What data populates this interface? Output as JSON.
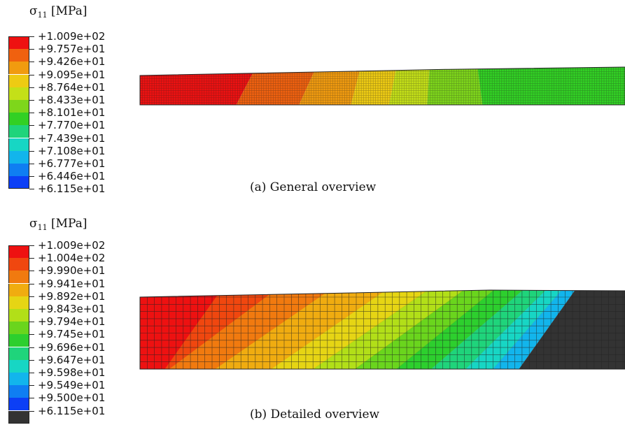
{
  "panels": [
    {
      "legend_title": {
        "symbol": "σ",
        "subscript": "11",
        "unit": " [MPa]"
      },
      "legend_labels": [
        "+1.009e+02",
        "+9.757e+01",
        "+9.426e+01",
        "+9.095e+01",
        "+8.764e+01",
        "+8.433e+01",
        "+8.101e+01",
        "+7.770e+01",
        "+7.439e+01",
        "+7.108e+01",
        "+6.777e+01",
        "+6.446e+01",
        "+6.115e+01"
      ],
      "legend_colors": [
        "#ee1111",
        "#f0610f",
        "#f19b0f",
        "#eecb13",
        "#c4e018",
        "#7ed61b",
        "#32d024",
        "#1fd47b",
        "#17d6c4",
        "#12b5ec",
        "#0f7ef2",
        "#0c3ff5"
      ],
      "caption": "(a) General overview"
    },
    {
      "legend_title": {
        "symbol": "σ",
        "subscript": "11",
        "unit": " [MPa]"
      },
      "legend_labels": [
        "+1.009e+02",
        "+1.004e+02",
        "+9.990e+01",
        "+9.941e+01",
        "+9.892e+01",
        "+9.843e+01",
        "+9.794e+01",
        "+9.745e+01",
        "+9.696e+01",
        "+9.647e+01",
        "+9.598e+01",
        "+9.549e+01",
        "+9.500e+01",
        "+6.115e+01"
      ],
      "legend_colors": [
        "#ee1111",
        "#f0470f",
        "#f17a0f",
        "#f0ac10",
        "#e6d514",
        "#b2df18",
        "#6ad51d",
        "#2dcf2e",
        "#1fd47b",
        "#17d6c4",
        "#12b5ec",
        "#0f7ef2",
        "#0c3ff5",
        "#333333"
      ],
      "caption": "(b) Detailed overview"
    }
  ]
}
